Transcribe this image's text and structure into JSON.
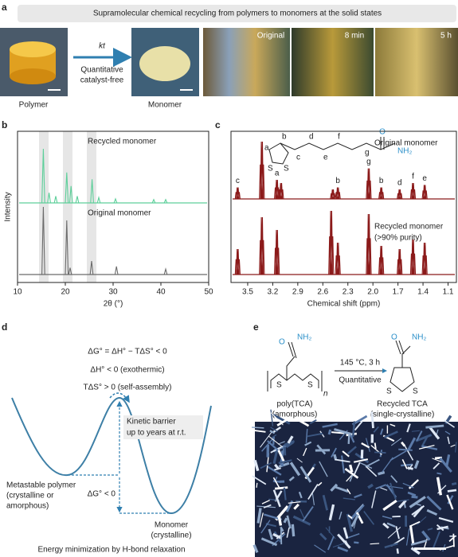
{
  "chart_data": [
    {
      "type": "spectrum",
      "label": "b",
      "xlabel": "2θ (°)",
      "ylabel": "Intensity",
      "xlim": [
        10,
        50
      ],
      "xticks": [
        10,
        20,
        30,
        40,
        50
      ],
      "highlight_bands": [
        [
          14.5,
          16.5
        ],
        [
          19.5,
          21.5
        ],
        [
          24.5,
          26.5
        ]
      ],
      "series": [
        {
          "name": "Recycled monomer",
          "color": "#5dcf9a",
          "x": [
            15.4,
            16.6,
            18,
            20.3,
            21.2,
            22.5,
            25.6,
            27,
            30.5,
            38.5,
            41
          ],
          "values": [
            80,
            15,
            10,
            45,
            25,
            10,
            35,
            8,
            6,
            5,
            5
          ]
        },
        {
          "name": "Original monomer",
          "color": "#6b6b6b",
          "x": [
            15.4,
            20.3,
            21,
            25.5,
            30.7,
            41
          ],
          "values": [
            100,
            80,
            10,
            20,
            12,
            8
          ]
        }
      ]
    },
    {
      "type": "spectrum",
      "label": "c",
      "xlabel": "Chemical shift (ppm)",
      "xlim": [
        3.7,
        1.0
      ],
      "xticks": [
        3.5,
        3.2,
        2.9,
        2.6,
        2.3,
        {
          "value": 2.0,
          "label": "2.0"
        },
        1.7,
        1.4,
        1.1
      ],
      "series": [
        {
          "name": "Original monomer",
          "color": "#8b1a1a",
          "x": [
            3.62,
            3.33,
            3.15,
            3.1,
            2.48,
            2.42,
            2.05,
            1.9,
            1.68,
            1.52,
            1.38
          ],
          "values": [
            18,
            90,
            30,
            25,
            15,
            18,
            48,
            18,
            15,
            25,
            22
          ]
        },
        {
          "name": "Recycled monomer",
          "subtitle": "(>90% purity)",
          "color": "#8b1a1a",
          "x": [
            3.62,
            3.33,
            3.15,
            2.5,
            2.42,
            2.05,
            1.9,
            1.68,
            1.52,
            1.38
          ],
          "values": [
            40,
            90,
            70,
            100,
            50,
            95,
            45,
            40,
            55,
            50
          ]
        }
      ],
      "peak_labels": [
        "c",
        "a",
        "b",
        "g",
        "b",
        "d",
        "f",
        "e"
      ],
      "peak_label_x": [
        3.62,
        3.15,
        2.42,
        2.05,
        1.9,
        1.68,
        1.52,
        1.38
      ]
    }
  ],
  "document": {
    "a": {
      "label": "a",
      "banner": "Supramolecular chemical recycling from polymers to monomers at the solid states",
      "arrow_top": "kt",
      "arrow_bottom": [
        "Quantitative",
        "catalyst-free"
      ],
      "captions": [
        "Polymer",
        "Monomer"
      ],
      "photo_labels": [
        "Original",
        "8 min",
        "5 h"
      ]
    },
    "c_structure": {
      "atoms": [
        "S",
        "S",
        "O",
        "NH₂"
      ],
      "positions": [
        "a",
        "b",
        "c",
        "d",
        "e",
        "f",
        "g"
      ]
    },
    "d": {
      "label": "d",
      "equations": [
        "ΔG° = ΔH° − TΔS° < 0",
        "ΔH° < 0 (exothermic)",
        "TΔS° > 0 (self-assembly)"
      ],
      "barrier": [
        "Kinetic barrier",
        "up to years at r.t."
      ],
      "polymer": [
        "Metastable polymer",
        "(crystalline or",
        "amorphous)"
      ],
      "delta": "ΔG° < 0",
      "monomer": [
        "Monomer",
        "(crystalline)"
      ],
      "footer": "Energy minimization by H-bond relaxation"
    },
    "e": {
      "label": "e",
      "conditions": "145 °C, 3 h",
      "yield": "Quantitative",
      "reactant": [
        "poly(TCA)",
        "(amorphous)"
      ],
      "product": [
        "Recycled TCA",
        "(single-crystalline)"
      ],
      "atoms": [
        "NH₂",
        "O",
        "S",
        "S",
        "n",
        "NH₂",
        "O",
        "S",
        "S"
      ]
    }
  }
}
